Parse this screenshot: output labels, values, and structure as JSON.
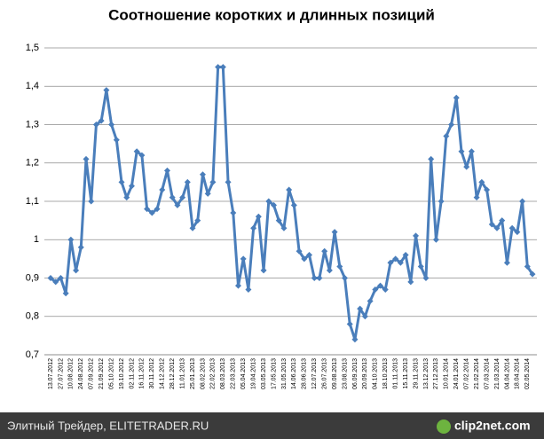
{
  "chart_data": {
    "type": "line",
    "title": "Соотношение коротких и длинных позиций",
    "categories": [
      "13.07.2012",
      null,
      "27.07.2012",
      null,
      "10.08.2012",
      null,
      "24.08.2012",
      null,
      "07.09.2012",
      null,
      "21.09.2012",
      null,
      "05.10.2012",
      null,
      "19.10.2012",
      null,
      "02.11.2012",
      null,
      "16.11.2012",
      null,
      "30.11.2012",
      null,
      "14.12.2012",
      null,
      "28.12.2012",
      null,
      "11.01.2013",
      null,
      "25.01.2013",
      null,
      "08.02.2013",
      null,
      "22.02.2013",
      null,
      "08.03.2013",
      null,
      "22.03.2013",
      null,
      "05.04.2013",
      null,
      "19.04.2013",
      null,
      "03.05.2013",
      null,
      "17.05.2013",
      null,
      "31.05.2013",
      null,
      "14.06.2013",
      null,
      "28.06.2013",
      null,
      "12.07.2013",
      null,
      "26.07.2013",
      null,
      "09.08.2013",
      null,
      "23.08.2013",
      null,
      "06.09.2013",
      null,
      "20.09.2013",
      null,
      "04.10.2013",
      null,
      "18.10.2013",
      null,
      "01.11.2013",
      null,
      "15.11.2013",
      null,
      "29.11.2013",
      null,
      "13.12.2013",
      null,
      "27.12.2013",
      null,
      "10.01.2014",
      null,
      "24.01.2014",
      null,
      "07.02.2014",
      null,
      "21.02.2014",
      null,
      "07.03.2014",
      null,
      "21.03.2014",
      null,
      "04.04.2014",
      null,
      "18.04.2014",
      null,
      "02.05.2014",
      null
    ],
    "series": [
      {
        "name": "Соотношение",
        "color": "#4a7ebb",
        "values": [
          0.9,
          0.89,
          0.9,
          0.86,
          1.0,
          0.92,
          0.98,
          1.21,
          1.1,
          1.3,
          1.31,
          1.39,
          1.3,
          1.26,
          1.15,
          1.11,
          1.14,
          1.23,
          1.22,
          1.08,
          1.07,
          1.08,
          1.13,
          1.18,
          1.11,
          1.09,
          1.11,
          1.15,
          1.03,
          1.05,
          1.17,
          1.12,
          1.15,
          1.45,
          1.45,
          1.15,
          1.07,
          0.88,
          0.95,
          0.87,
          1.03,
          1.06,
          0.92,
          1.1,
          1.09,
          1.05,
          1.03,
          1.13,
          1.09,
          0.97,
          0.95,
          0.96,
          0.9,
          0.9,
          0.97,
          0.92,
          1.02,
          0.93,
          0.9,
          0.78,
          0.74,
          0.82,
          0.8,
          0.84,
          0.87,
          0.88,
          0.87,
          0.94,
          0.95,
          0.94,
          0.96,
          0.89,
          1.01,
          0.93,
          0.9,
          1.21,
          1.0,
          1.1,
          1.27,
          1.3,
          1.37,
          1.23,
          1.19,
          1.23,
          1.11,
          1.15,
          1.13,
          1.04,
          1.03,
          1.05,
          0.94,
          1.03,
          1.02,
          1.1,
          0.93,
          0.91
        ]
      }
    ],
    "ylim": [
      0.7,
      1.5
    ],
    "yticks": [
      {
        "value": 0.7,
        "label": "0,7"
      },
      {
        "value": 0.8,
        "label": "0,8"
      },
      {
        "value": 0.9,
        "label": "0,9"
      },
      {
        "value": 1,
        "label": "1"
      },
      {
        "value": 1.1,
        "label": "1,1"
      },
      {
        "value": 1.2,
        "label": "1,2"
      },
      {
        "value": 1.3,
        "label": "1,3"
      },
      {
        "value": 1.4,
        "label": "1,4"
      },
      {
        "value": 1.5,
        "label": "1,5"
      }
    ],
    "grid": true,
    "footer": {
      "source": "Элитный Трейдер, ELITETRADER.RU",
      "logo": "clip2net.com"
    }
  }
}
